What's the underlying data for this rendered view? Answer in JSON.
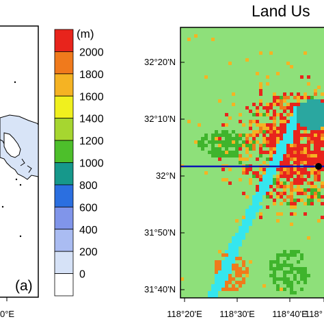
{
  "left_panel": {
    "panel_label": "(a)",
    "x_tick_label": "0°E",
    "colors": {
      "land": "#ffffff",
      "sea": "#d8e4f7",
      "border": "#000000"
    }
  },
  "colorbar": {
    "unit_label": "(m)",
    "levels": [
      "2000",
      "1800",
      "1600",
      "1400",
      "1200",
      "1000",
      "800",
      "600",
      "400",
      "200",
      "0"
    ],
    "colors": [
      "#e8241c",
      "#f07a1c",
      "#f5b323",
      "#f0f01e",
      "#a6d630",
      "#4dbf2b",
      "#16988b",
      "#2b6fe0",
      "#8095ea",
      "#aabcf2",
      "#d6e2f7",
      "#ffffff"
    ]
  },
  "right_panel": {
    "title": "Land Us",
    "y_tick_labels": [
      "32°20'N",
      "32°10'N",
      "32°N",
      "31°50'N",
      "31°40'N"
    ],
    "x_tick_labels": [
      "118°20'E",
      "118°30'E",
      "118°40'E",
      "118°"
    ],
    "transect_color": "#0a14b4",
    "colors": {
      "background": "#8ee07a",
      "urban": "#e8241c",
      "cropland": "#f5b323",
      "mixed": "#f07a1c",
      "forest": "#3fb42c",
      "water": "#35e6ee",
      "lake": "#2aa7a0"
    }
  }
}
